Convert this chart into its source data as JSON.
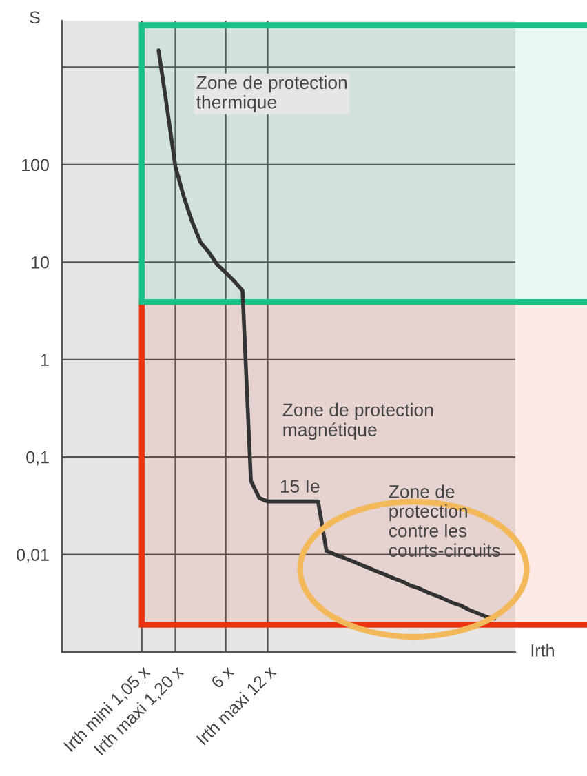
{
  "chart_data": {
    "type": "line",
    "xlabel": "Irth",
    "ylabel": "S",
    "log": "y",
    "grid": true,
    "categories": [
      null,
      null,
      null,
      null,
      null,
      null,
      null,
      null,
      null,
      "Irth mini 1,05 x",
      null,
      null,
      null,
      "Irth maxi 1,20 x",
      null,
      null,
      null,
      null,
      null,
      "6 x",
      null,
      null,
      null,
      null,
      "Irth maxi 12 x",
      null,
      null,
      null,
      null,
      null,
      null,
      null,
      null,
      null,
      null,
      null,
      null,
      null,
      null,
      null,
      null,
      null,
      null,
      null,
      null,
      null,
      null,
      null,
      null,
      null,
      null,
      null,
      null,
      null
    ],
    "series": [
      {
        "color": "#333333",
        "values": [
          null,
          null,
          null,
          null,
          null,
          null,
          null,
          null,
          null,
          null,
          null,
          1490,
          390,
          96,
          47,
          26,
          16,
          12.6,
          9.4,
          7.8,
          6.4,
          5.1,
          0.057,
          0.038,
          0.035,
          0.035,
          0.035,
          0.035,
          0.035,
          0.035,
          0.035,
          0.0109,
          0.01,
          0.0093,
          0.0086,
          0.0079,
          0.0073,
          0.0067,
          0.0062,
          0.0057,
          0.0053,
          0.0048,
          0.0045,
          0.0041,
          0.0038,
          0.0035,
          0.0032,
          0.003,
          0.0027,
          0.0025,
          0.0023,
          0.0022,
          null,
          null
        ]
      }
    ],
    "ylim": [
      0.001,
      3000
    ],
    "yticks": [
      {
        "value": 0.01,
        "label": "0,01"
      },
      {
        "value": 0.1,
        "label": "0,1"
      },
      1,
      10,
      100,
      {
        "value": 1000,
        "label": null
      }
    ],
    "bands": [
      {
        "axis": "y",
        "from": 3.9,
        "to": 2700,
        "label": "Zone de protection\nthermique",
        "color": "#19c08a"
      },
      {
        "axis": "y",
        "from": 0.0019,
        "to": 3.9,
        "label": "Zone de protection\nmagnétique",
        "color": "#ee3311"
      }
    ],
    "annotations": [
      "15 Ie",
      "Zone de\nprotection\ncontre les\ncourts-circuits"
    ]
  }
}
